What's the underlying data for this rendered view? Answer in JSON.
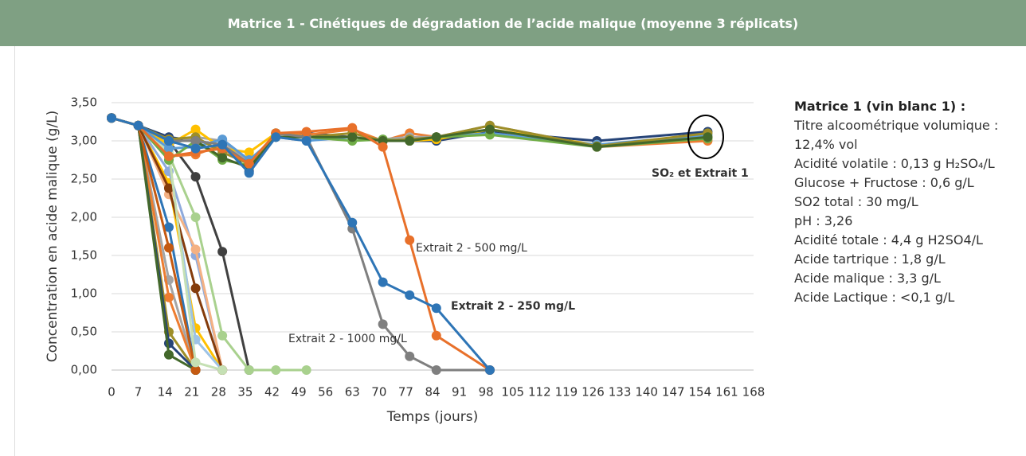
{
  "header": {
    "title": "Matrice 1 - Cinétiques de dégradation de l’acide malique (moyenne 3 réplicats)"
  },
  "chart_data": {
    "type": "line",
    "xlabel": "Temps (jours)",
    "ylabel": "Concentration en acide malique (g/L)",
    "x": [
      0,
      7,
      15,
      22,
      29,
      36,
      43,
      51,
      63,
      71,
      78,
      85,
      99,
      127,
      156
    ],
    "xlim": [
      0,
      168
    ],
    "xticks": [
      0,
      7,
      14,
      21,
      28,
      35,
      42,
      49,
      56,
      63,
      70,
      77,
      84,
      91,
      98,
      105,
      112,
      119,
      126,
      133,
      140,
      147,
      154,
      161,
      168
    ],
    "ylim": [
      0,
      3.5
    ],
    "yticks": [
      {
        "value": 0,
        "label": "0,00"
      },
      {
        "value": 0.5,
        "label": "0,50"
      },
      {
        "value": 1,
        "label": "1,00"
      },
      {
        "value": 1.5,
        "label": "1,50"
      },
      {
        "value": 2,
        "label": "2,00"
      },
      {
        "value": 2.5,
        "label": "2,50"
      },
      {
        "value": 3,
        "label": "3,00"
      },
      {
        "value": 3.5,
        "label": "3,50"
      }
    ],
    "grid": true,
    "series": [
      {
        "color": "#404040",
        "values": [
          3.3,
          3.2,
          3.0,
          2.53,
          1.55,
          0,
          null,
          null,
          null,
          null,
          null,
          null,
          null,
          null,
          null
        ]
      },
      {
        "color": "#a9d18e",
        "values": [
          3.3,
          3.2,
          2.82,
          2.0,
          0.45,
          0,
          0,
          0,
          null,
          null,
          null,
          null,
          null,
          null,
          null
        ]
      },
      {
        "color": "#2e75b6",
        "values": [
          3.3,
          3.2,
          1.87,
          0,
          null,
          null,
          null,
          null,
          null,
          null,
          null,
          null,
          null,
          null,
          null
        ]
      },
      {
        "color": "#a5a5a5",
        "values": [
          3.3,
          3.2,
          1.18,
          0,
          null,
          null,
          null,
          null,
          null,
          null,
          null,
          null,
          null,
          null,
          null
        ]
      },
      {
        "color": "#ed7d31",
        "values": [
          3.3,
          3.2,
          0.95,
          0,
          null,
          null,
          null,
          null,
          null,
          null,
          null,
          null,
          null,
          null,
          null
        ]
      },
      {
        "color": "#9e8e28",
        "values": [
          3.3,
          3.2,
          0.5,
          0,
          null,
          null,
          null,
          null,
          null,
          null,
          null,
          null,
          null,
          null,
          null
        ]
      },
      {
        "color": "#264478",
        "values": [
          3.3,
          3.2,
          0.35,
          0,
          null,
          null,
          null,
          null,
          null,
          null,
          null,
          null,
          null,
          null,
          null
        ]
      },
      {
        "color": "#43682b",
        "values": [
          3.3,
          3.2,
          0.2,
          0,
          null,
          null,
          null,
          null,
          null,
          null,
          null,
          null,
          null,
          null,
          null
        ]
      },
      {
        "color": "#c55a11",
        "values": [
          3.3,
          3.2,
          1.6,
          0,
          null,
          null,
          null,
          null,
          null,
          null,
          null,
          null,
          null,
          null,
          null
        ]
      },
      {
        "color": "#ffc000",
        "values": [
          3.3,
          3.2,
          2.45,
          0.55,
          0,
          null,
          null,
          null,
          null,
          null,
          null,
          null,
          null,
          null,
          null
        ]
      },
      {
        "color": "#9dc3e6",
        "values": [
          3.3,
          3.2,
          2.75,
          0.4,
          0,
          null,
          null,
          null,
          null,
          null,
          null,
          null,
          null,
          null,
          null
        ]
      },
      {
        "color": "#8faadc",
        "values": [
          3.3,
          3.2,
          2.6,
          1.5,
          0,
          null,
          null,
          null,
          null,
          null,
          null,
          null,
          null,
          null,
          null
        ]
      },
      {
        "color": "#f4b183",
        "values": [
          3.3,
          3.2,
          2.3,
          1.58,
          0,
          null,
          null,
          null,
          null,
          null,
          null,
          null,
          null,
          null,
          null
        ]
      },
      {
        "color": "#843c0c",
        "values": [
          3.3,
          3.2,
          2.38,
          1.07,
          0,
          null,
          null,
          null,
          null,
          null,
          null,
          null,
          null,
          null,
          null
        ]
      },
      {
        "color": "#c5e0b4",
        "values": [
          3.3,
          3.2,
          2.85,
          0.1,
          0,
          null,
          null,
          null,
          null,
          null,
          null,
          null,
          null,
          null,
          null
        ]
      },
      {
        "color": "#264478",
        "values": [
          3.3,
          3.2,
          3.05,
          3.0,
          2.95,
          2.6,
          3.05,
          3.1,
          3.05,
          3.0,
          3.0,
          3.0,
          3.12,
          3.0,
          3.12
        ]
      },
      {
        "color": "#ed7d31",
        "values": [
          3.3,
          3.2,
          2.8,
          2.82,
          2.95,
          2.7,
          3.1,
          3.08,
          3.15,
          3.0,
          3.1,
          3.05,
          3.15,
          2.92,
          3.0
        ]
      },
      {
        "color": "#a5a5a5",
        "values": [
          3.3,
          3.2,
          2.95,
          3.05,
          3.0,
          2.72,
          3.08,
          3.05,
          3.05,
          3.02,
          3.05,
          3.05,
          3.2,
          2.93,
          3.05
        ]
      },
      {
        "color": "#ffc000",
        "values": [
          3.3,
          3.2,
          2.95,
          3.15,
          2.9,
          2.85,
          3.1,
          3.05,
          3.05,
          3.0,
          3.0,
          3.02,
          3.15,
          2.95,
          3.05
        ]
      },
      {
        "color": "#5b9bd5",
        "values": [
          3.3,
          3.2,
          2.9,
          2.92,
          3.02,
          2.75,
          3.05,
          3.0,
          3.05,
          3.0,
          3.02,
          3.05,
          3.1,
          2.95,
          3.08
        ]
      },
      {
        "color": "#70ad47",
        "values": [
          3.3,
          3.2,
          2.75,
          3.0,
          2.75,
          2.68,
          3.1,
          3.05,
          3.0,
          3.02,
          3.0,
          3.05,
          3.08,
          2.92,
          3.03
        ]
      },
      {
        "color": "#9e8e28",
        "values": [
          3.3,
          3.2,
          3.02,
          3.05,
          2.85,
          2.7,
          3.1,
          3.05,
          3.1,
          3.0,
          3.02,
          3.05,
          3.2,
          2.93,
          3.1
        ]
      },
      {
        "color": "#43682b",
        "values": [
          3.3,
          3.2,
          3.0,
          3.0,
          2.78,
          2.65,
          3.05,
          3.05,
          3.05,
          3.0,
          3.0,
          3.05,
          3.15,
          2.92,
          3.05
        ]
      },
      {
        "color": "#7f7f7f",
        "values": [
          3.3,
          3.2,
          3.0,
          3.0,
          2.95,
          2.7,
          3.1,
          3.05,
          1.85,
          0.6,
          0.18,
          0,
          0,
          null,
          null
        ]
      },
      {
        "color": "#e8702a",
        "values": [
          3.3,
          3.2,
          2.8,
          2.85,
          2.9,
          2.7,
          3.1,
          3.12,
          3.17,
          2.92,
          1.7,
          0.45,
          0,
          null,
          null
        ]
      },
      {
        "color": "#2e75b6",
        "values": [
          3.3,
          3.2,
          3.0,
          2.9,
          2.95,
          2.58,
          3.05,
          3.0,
          1.93,
          1.15,
          0.98,
          0.81,
          0,
          null,
          null
        ]
      }
    ],
    "annotations": [
      {
        "text": "Extrait 2 - 500 mg/L",
        "color": "#e8702a"
      },
      {
        "text": "Extrait 2 - 250 mg/L",
        "color": "#2e75b6"
      },
      {
        "text": "Extrait 2 - 1000 mg/L",
        "color": "#7f7f7f"
      },
      {
        "text": "SO₂ et Extrait 1",
        "color": "#000000"
      }
    ]
  },
  "info": {
    "title": "Matrice 1 (vin blanc 1) :",
    "lines": [
      "Titre alcoométrique volumique : 12,4% vol",
      "Acidité volatile : 0,13 g H₂SO₄/L",
      "Glucose + Fructose : 0,6 g/L",
      "SO2 total : 30 mg/L",
      "pH : 3,26",
      "Acidité totale : 4,4 g H2SO4/L",
      "Acide tartrique : 1,8 g/L",
      "Acide malique : 3,3 g/L",
      "Acide Lactique : <0,1 g/L"
    ]
  }
}
